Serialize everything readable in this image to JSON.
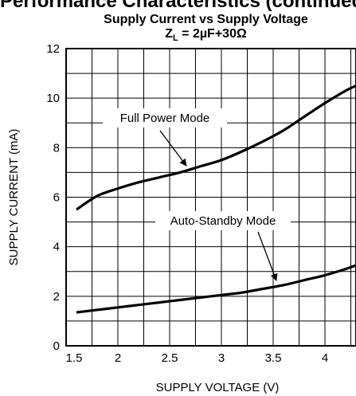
{
  "page": {
    "heading": "Performance Characteristics (continued)"
  },
  "chart_data": {
    "type": "line",
    "title": "Supply Current vs Supply Voltage",
    "subtitle_prefix": "Z",
    "subtitle_sub": "L",
    "subtitle_suffix": " = 2µF+30Ω",
    "xlabel": "SUPPLY VOLTAGE (V)",
    "ylabel": "SUPPLY CURRENT (mA)",
    "xlim": [
      1.5,
      4.3
    ],
    "ylim": [
      0,
      12
    ],
    "x_ticks": [
      {
        "value": 1.5,
        "label": "1.5"
      },
      {
        "value": 2,
        "label": "2"
      },
      {
        "value": 2.5,
        "label": "2.5"
      },
      {
        "value": 3,
        "label": "3"
      },
      {
        "value": 3.5,
        "label": "3.5"
      },
      {
        "value": 4,
        "label": "4"
      }
    ],
    "y_ticks": [
      {
        "value": 0,
        "label": "0"
      },
      {
        "value": 2,
        "label": "2"
      },
      {
        "value": 4,
        "label": "4"
      },
      {
        "value": 6,
        "label": "6"
      },
      {
        "value": 8,
        "label": "8"
      },
      {
        "value": 10,
        "label": "10"
      },
      {
        "value": 12,
        "label": "12"
      }
    ],
    "grid": true,
    "series": [
      {
        "name": "Full Power Mode",
        "x": [
          1.6,
          1.8,
          2.0,
          2.2,
          2.4,
          2.6,
          2.8,
          3.0,
          3.2,
          3.4,
          3.6,
          3.8,
          4.0,
          4.2,
          4.3
        ],
        "y": [
          5.5,
          6.05,
          6.35,
          6.6,
          6.8,
          7.0,
          7.25,
          7.5,
          7.85,
          8.25,
          8.7,
          9.25,
          9.8,
          10.3,
          10.5
        ]
      },
      {
        "name": "Auto-Standby Mode",
        "x": [
          1.6,
          1.8,
          2.0,
          2.2,
          2.4,
          2.6,
          2.8,
          3.0,
          3.2,
          3.4,
          3.6,
          3.8,
          4.0,
          4.2,
          4.3
        ],
        "y": [
          1.35,
          1.45,
          1.55,
          1.65,
          1.75,
          1.85,
          1.95,
          2.05,
          2.15,
          2.3,
          2.45,
          2.65,
          2.85,
          3.1,
          3.25
        ]
      }
    ],
    "annotations": [
      {
        "text": "Full Power Mode",
        "series": 0
      },
      {
        "text": "Auto-Standby Mode",
        "series": 1
      }
    ]
  }
}
